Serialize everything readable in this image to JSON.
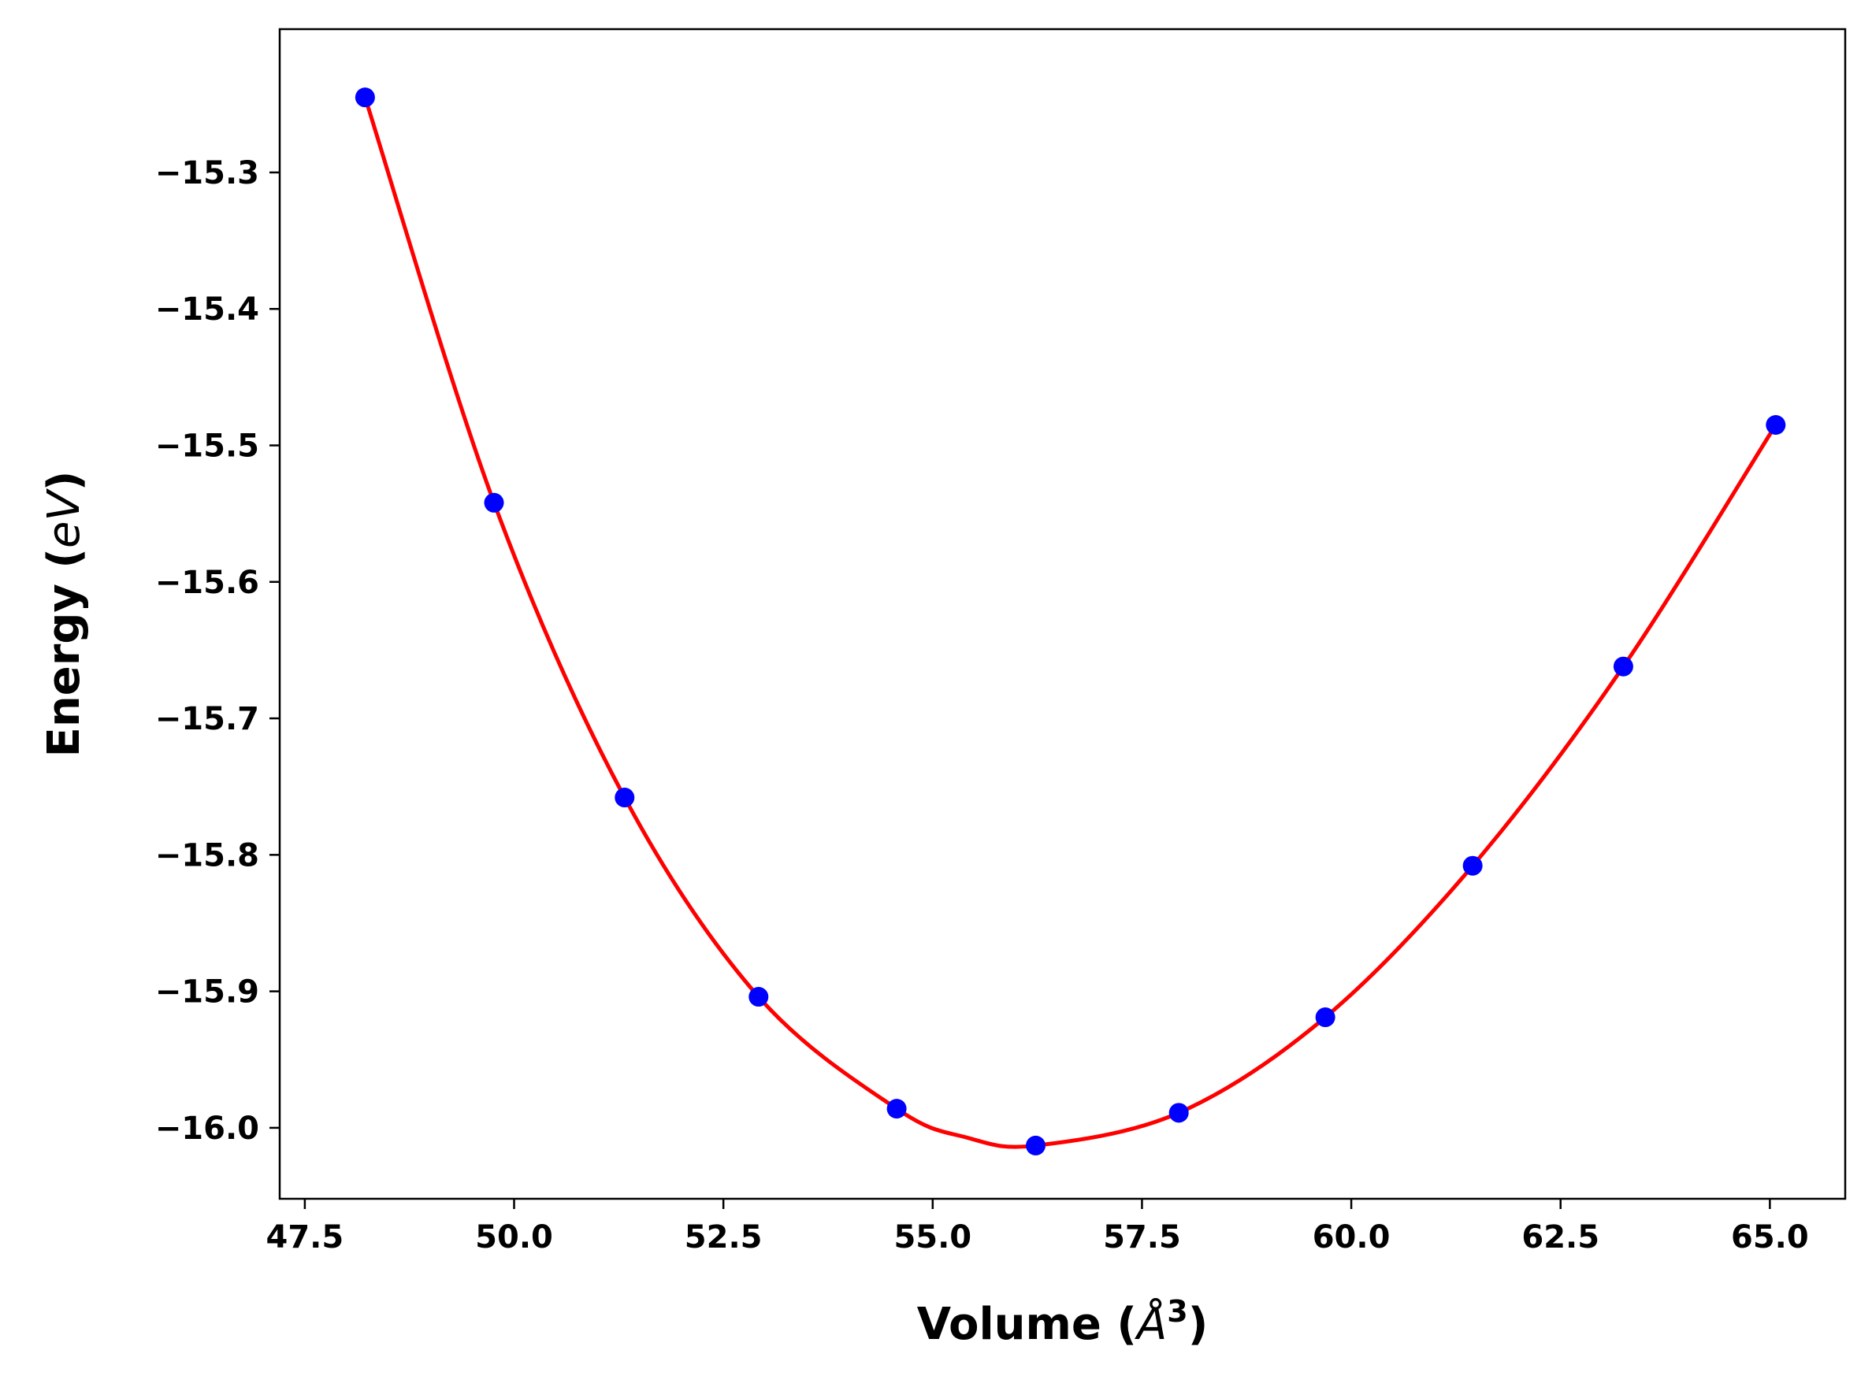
{
  "chart_data": {
    "type": "line",
    "title": "",
    "xlabel": {
      "prefix": "Volume (",
      "unit": "Å",
      "sup": "3",
      "suffix": ")"
    },
    "ylabel": {
      "prefix": "Energy (",
      "unit": "eV",
      "suffix": ")"
    },
    "xlim": [
      47.2,
      65.9
    ],
    "ylim": [
      -16.052,
      -15.195
    ],
    "xticks": [
      47.5,
      50.0,
      52.5,
      55.0,
      57.5,
      60.0,
      62.5,
      65.0
    ],
    "xtick_labels": [
      "47.5",
      "50.0",
      "52.5",
      "55.0",
      "57.5",
      "60.0",
      "62.5",
      "65.0"
    ],
    "yticks": [
      -15.3,
      -15.4,
      -15.5,
      -15.6,
      -15.7,
      -15.8,
      -15.9,
      -16.0
    ],
    "ytick_labels": [
      "−15.3",
      "−15.4",
      "−15.5",
      "−15.6",
      "−15.7",
      "−15.8",
      "−15.9",
      "−16.0"
    ],
    "grid": false,
    "legend": false,
    "series": [
      {
        "kind": "points",
        "color": "#0000ff",
        "x": [
          48.22,
          49.76,
          51.32,
          52.92,
          54.57,
          56.23,
          57.94,
          59.69,
          61.45,
          63.25,
          65.07
        ],
        "y": [
          -15.245,
          -15.542,
          -15.758,
          -15.904,
          -15.986,
          -16.013,
          -15.989,
          -15.919,
          -15.808,
          -15.662,
          -15.485
        ]
      },
      {
        "kind": "fit-curve",
        "color": "#ff0000",
        "x": [
          48.22,
          49.76,
          51.32,
          52.92,
          54.57,
          55.4,
          56.23,
          57.94,
          59.69,
          61.45,
          63.25,
          65.07
        ],
        "y": [
          -15.245,
          -15.542,
          -15.758,
          -15.904,
          -15.986,
          -16.007,
          -16.013,
          -15.989,
          -15.919,
          -15.808,
          -15.662,
          -15.485
        ]
      }
    ]
  }
}
